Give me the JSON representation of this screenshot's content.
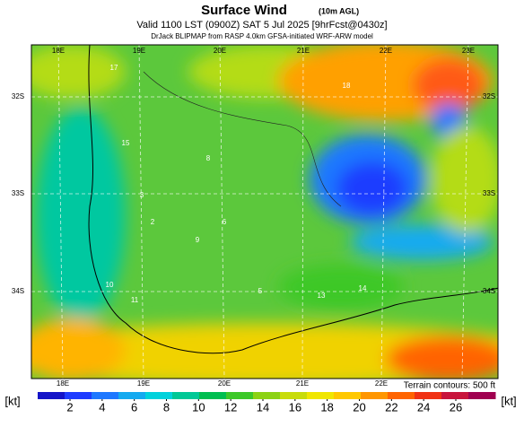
{
  "header": {
    "title": "Surface Wind",
    "title_note": "(10m AGL)",
    "valid": "Valid 1100 LST (0900Z) SAT 5 Jul 2025 [9hrFcst@0430z]",
    "source": "DrJack BLIPMAP from RASP 4.0km GFSA-initiated WRF-ARW model"
  },
  "map": {
    "lon_labels_top": [
      "18E",
      "19E",
      "20E",
      "21E",
      "22E",
      "23E"
    ],
    "lon_labels_bottom": [
      "18E",
      "19E",
      "20E",
      "21E",
      "22E"
    ],
    "lat_labels": [
      "32S",
      "33S",
      "34S"
    ],
    "contour_labels": [
      "17",
      "15",
      "8",
      "10",
      "3",
      "2",
      "18",
      "6",
      "5",
      "13",
      "14",
      "11",
      "9"
    ],
    "terrain_note": "Terrain contours: 500 ft"
  },
  "colorbar": {
    "unit": "[kt]",
    "ticks": [
      2,
      4,
      6,
      8,
      10,
      12,
      14,
      16,
      18,
      20,
      22,
      24,
      26
    ],
    "colors": [
      "#1414c8",
      "#1e3cff",
      "#1e78ff",
      "#14aaf0",
      "#00d2dc",
      "#00c896",
      "#00be50",
      "#3cc828",
      "#8cd214",
      "#c8dc0a",
      "#f0e600",
      "#ffc800",
      "#ff9600",
      "#ff6400",
      "#f03214",
      "#c8143c",
      "#a00050"
    ]
  }
}
